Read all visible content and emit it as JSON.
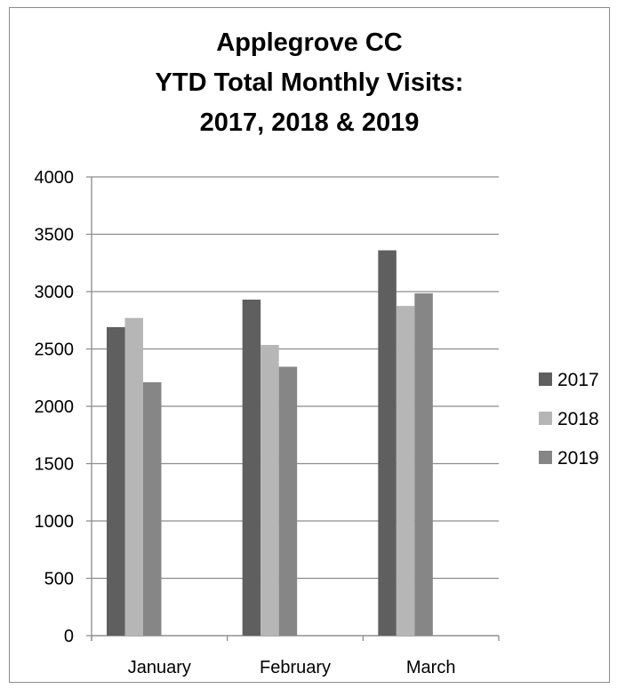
{
  "chart_data": {
    "type": "bar",
    "title": [
      "Applegrove CC",
      "YTD Total Monthly Visits:",
      "2017, 2018 & 2019"
    ],
    "categories": [
      "January",
      "February",
      "March"
    ],
    "series": [
      {
        "name": "2017",
        "values": [
          2690,
          2930,
          3360
        ],
        "color": "#5f5f5f"
      },
      {
        "name": "2018",
        "values": [
          2770,
          2535,
          2875
        ],
        "color": "#b6b6b6"
      },
      {
        "name": "2019",
        "values": [
          2210,
          2345,
          2985
        ],
        "color": "#868686"
      }
    ],
    "yticks": [
      0,
      500,
      1000,
      1500,
      2000,
      2500,
      3000,
      3500,
      4000
    ],
    "ylim": [
      0,
      4000
    ],
    "grid": true,
    "legend_position": "right"
  }
}
